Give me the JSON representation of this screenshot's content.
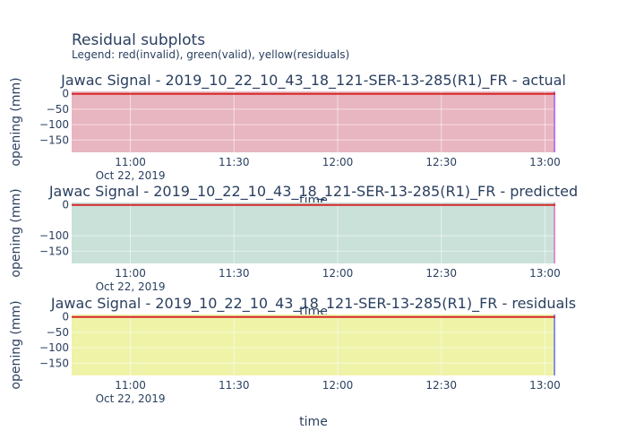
{
  "figure": {
    "title": "Residual subplots",
    "subtitle": "Legend: red(invalid), green(valid), yellow(residuals)"
  },
  "chart_data": [
    {
      "type": "area",
      "title": "Jawac Signal - 2019_10_22_10_43_18_121-SER-13-285(R1)_FR - actual",
      "xlabel": "time",
      "ylabel": "opening (mm)",
      "x_ticks": [
        "11:00",
        "11:30",
        "12:00",
        "12:30",
        "13:00"
      ],
      "x_tick_date": "Oct 22, 2019",
      "y_ticks": [
        0,
        -50,
        -100,
        -150
      ],
      "xlim": [
        "10:43",
        "13:03"
      ],
      "ylim": [
        -190,
        8
      ],
      "fill_color": "#e8b6c0",
      "line_color": "#d62728",
      "edge_color": "#ab63fa",
      "series": [
        {
          "x": [
            "10:43",
            "13:03"
          ],
          "values": [
            0,
            0
          ]
        }
      ]
    },
    {
      "type": "area",
      "title": "Jawac Signal - 2019_10_22_10_43_18_121-SER-13-285(R1)_FR - predicted",
      "xlabel": "time",
      "ylabel": "opening (mm)",
      "x_ticks": [
        "11:00",
        "11:30",
        "12:00",
        "12:30",
        "13:00"
      ],
      "x_tick_date": "Oct 22, 2019",
      "y_ticks": [
        0,
        -100,
        -150
      ],
      "xlim": [
        "10:43",
        "13:03"
      ],
      "ylim": [
        -190,
        8
      ],
      "fill_color": "#c9e1d9",
      "line_color": "#d62728",
      "edge_color": "#e377c2",
      "series": [
        {
          "x": [
            "10:43",
            "13:03"
          ],
          "values": [
            0,
            0
          ]
        }
      ]
    },
    {
      "type": "area",
      "title": "Jawac Signal - 2019_10_22_10_43_18_121-SER-13-285(R1)_FR - residuals",
      "xlabel": "time",
      "ylabel": "opening (mm)",
      "x_ticks": [
        "11:00",
        "11:30",
        "12:00",
        "12:30",
        "13:00"
      ],
      "x_tick_date": "Oct 22, 2019",
      "y_ticks": [
        0,
        -50,
        -100,
        -150
      ],
      "xlim": [
        "10:43",
        "13:03"
      ],
      "ylim": [
        -190,
        8
      ],
      "fill_color": "#eef3a8",
      "line_color": "#d62728",
      "edge_color": "#636efa",
      "series": [
        {
          "x": [
            "10:43",
            "13:03"
          ],
          "values": [
            0,
            0
          ]
        }
      ]
    }
  ]
}
